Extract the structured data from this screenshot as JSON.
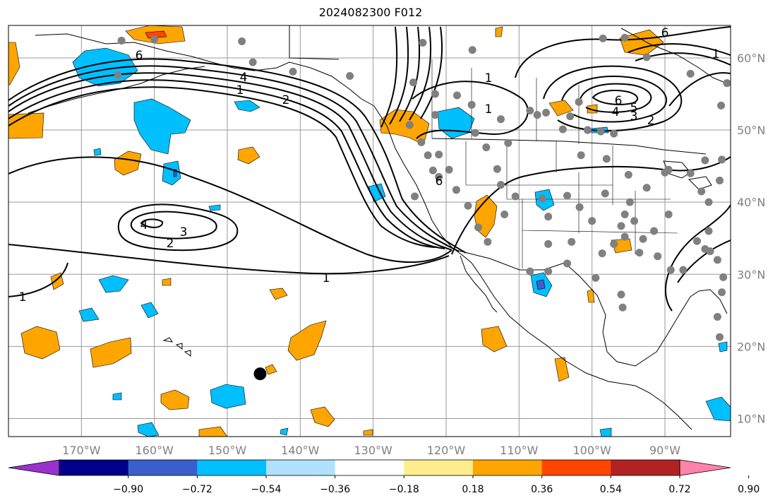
{
  "title": "2024082300 F012",
  "map": {
    "lon_range": [
      -180,
      -81
    ],
    "lat_range": [
      7.5,
      64.5
    ],
    "lon_ticks": [
      {
        "value": -170,
        "label": "170°W"
      },
      {
        "value": -160,
        "label": "160°W"
      },
      {
        "value": -150,
        "label": "150°W"
      },
      {
        "value": -140,
        "label": "140°W"
      },
      {
        "value": -130,
        "label": "130°W"
      },
      {
        "value": -120,
        "label": "120°W"
      },
      {
        "value": -110,
        "label": "110°W"
      },
      {
        "value": -100,
        "label": "100°W"
      },
      {
        "value": -90,
        "label": "90°W"
      }
    ],
    "lat_ticks": [
      {
        "value": 10,
        "label": "10°N"
      },
      {
        "value": 20,
        "label": "20°N"
      },
      {
        "value": 30,
        "label": "30°N"
      },
      {
        "value": 40,
        "label": "40°N"
      },
      {
        "value": 50,
        "label": "50°N"
      },
      {
        "value": 60,
        "label": "60°N"
      }
    ],
    "grid": true,
    "contour_labels": [
      "1",
      "2",
      "3",
      "4",
      "5",
      "6"
    ]
  },
  "colorbar": {
    "colors": [
      "#9932cc",
      "#00008b",
      "#3a5fcd",
      "#00bfff",
      "#b0e2ff",
      "#ffffff",
      "#ffec8b",
      "#ffa500",
      "#ff4500",
      "#b22222",
      "#ff82ab"
    ],
    "tick_labels": [
      "−0.90",
      "−0.72",
      "−0.54",
      "−0.36",
      "−0.18",
      "0.18",
      "0.36",
      "0.54",
      "0.72",
      "0.90"
    ],
    "extend": "both"
  },
  "storm_marker": {
    "lon": -145.5,
    "lat": 16.2
  },
  "stations": [
    [
      -164.5,
      62.4
    ],
    [
      -160,
      62.6
    ],
    [
      -148,
      62.3
    ],
    [
      -165,
      57.6
    ],
    [
      -146.5,
      59.4
    ],
    [
      -141,
      58.1
    ],
    [
      -133.2,
      57.5
    ],
    [
      -124.5,
      56.6
    ],
    [
      -121.5,
      55
    ],
    [
      -118.5,
      54.8
    ],
    [
      -116.5,
      53.5
    ],
    [
      -121.5,
      52.1
    ],
    [
      -116,
      49.6
    ],
    [
      -114.5,
      47.6
    ],
    [
      -112.5,
      51.5
    ],
    [
      -111.5,
      48.2
    ],
    [
      -107.5,
      52.1
    ],
    [
      -108.5,
      52.7
    ],
    [
      -106.3,
      52.4
    ],
    [
      -103,
      51.9
    ],
    [
      -104,
      50.1
    ],
    [
      -100.6,
      50
    ],
    [
      -98.8,
      49.8
    ],
    [
      -97,
      49.5
    ],
    [
      -101.5,
      46.5
    ],
    [
      -98,
      46
    ],
    [
      -95,
      43.8
    ],
    [
      -90,
      44.1
    ],
    [
      -89.5,
      44.5
    ],
    [
      -86.5,
      44
    ],
    [
      -84.5,
      45.8
    ],
    [
      -82.2,
      45.9
    ],
    [
      -82.5,
      43
    ],
    [
      -85,
      41.5
    ],
    [
      -89.5,
      38.3
    ],
    [
      -92.5,
      42
    ],
    [
      -94.8,
      40
    ],
    [
      -95.5,
      38.3
    ],
    [
      -98.2,
      41.2
    ],
    [
      -101.7,
      39.3
    ],
    [
      -103.4,
      40.9
    ],
    [
      -106.8,
      40.5
    ],
    [
      -110.5,
      40.8
    ],
    [
      -112.5,
      42.4
    ],
    [
      -113,
      44.6
    ],
    [
      -119.6,
      44.5
    ],
    [
      -121.8,
      44.4
    ],
    [
      -121,
      46.6
    ],
    [
      -123.4,
      48.3
    ],
    [
      -122.5,
      46.5
    ],
    [
      -121,
      43.5
    ],
    [
      -118.6,
      41.7
    ],
    [
      -117,
      39.5
    ],
    [
      -115.6,
      36.5
    ],
    [
      -114.3,
      34.5
    ],
    [
      -112,
      38.3
    ],
    [
      -106,
      38
    ],
    [
      -100,
      37.4
    ],
    [
      -96,
      36.7
    ],
    [
      -94.2,
      37.4
    ],
    [
      -91.5,
      36
    ],
    [
      -93,
      34.9
    ],
    [
      -95.5,
      35.2
    ],
    [
      -97,
      34.2
    ],
    [
      -98.6,
      32.9
    ],
    [
      -102.8,
      34.5
    ],
    [
      -106,
      34.2
    ],
    [
      -108.5,
      30.4
    ],
    [
      -106,
      30.4
    ],
    [
      -103.4,
      31.5
    ],
    [
      -99.5,
      29.5
    ],
    [
      -96,
      27.2
    ],
    [
      -95.8,
      25.4
    ],
    [
      -93.5,
      33
    ],
    [
      -91,
      32.5
    ],
    [
      -89.2,
      30.6
    ],
    [
      -87.5,
      30.6
    ],
    [
      -84.5,
      33.5
    ],
    [
      -84,
      36
    ],
    [
      -85.6,
      34.6
    ],
    [
      -82,
      29.6
    ],
    [
      -82.8,
      32
    ],
    [
      -83.8,
      33.2
    ],
    [
      -84,
      40
    ],
    [
      -82.8,
      24.1
    ],
    [
      -82.5,
      21.3
    ],
    [
      -82.2,
      27.5
    ],
    [
      -82.3,
      53.4
    ],
    [
      -81.5,
      56.5
    ],
    [
      -86.5,
      57.8
    ],
    [
      -92.5,
      60.1
    ],
    [
      -95.5,
      62.8
    ],
    [
      -101.8,
      53.9
    ],
    [
      -98.5,
      62.7
    ],
    [
      -123.2,
      62.1
    ],
    [
      -116.4,
      61.1
    ],
    [
      -124.3,
      40.8
    ],
    [
      -125,
      50.7
    ]
  ]
}
